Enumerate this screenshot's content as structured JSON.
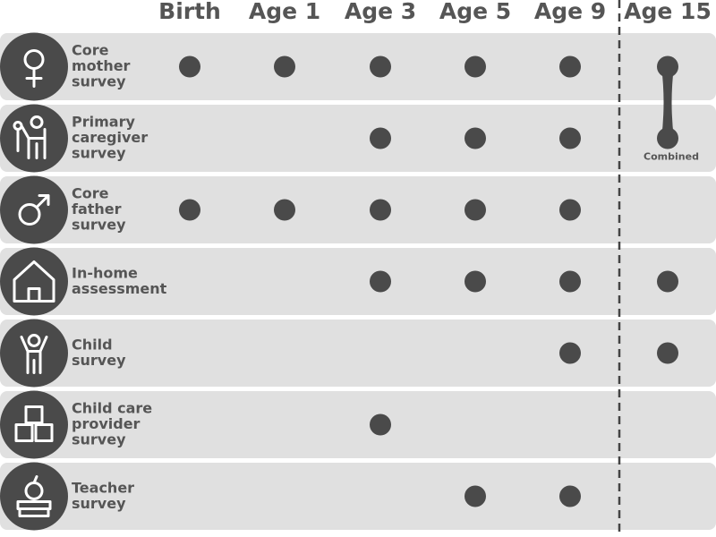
{
  "columns": [
    "Birth",
    "Age 1",
    "Age 3",
    "Age 5",
    "Age 9",
    "Age 15"
  ],
  "rows": [
    {
      "label": [
        "Core",
        "mother",
        "survey"
      ],
      "dots": [
        0,
        1,
        2,
        3,
        4,
        5
      ]
    },
    {
      "label": [
        "Primary",
        "caregiver",
        "survey"
      ],
      "dots": [
        2,
        3,
        4,
        5
      ]
    },
    {
      "label": [
        "Core",
        "father",
        "survey"
      ],
      "dots": [
        0,
        1,
        2,
        3,
        4
      ]
    },
    {
      "label": [
        "In-home",
        "assessment"
      ],
      "dots": [
        2,
        3,
        4,
        5
      ]
    },
    {
      "label": [
        "Child",
        "survey"
      ],
      "dots": [
        4,
        5
      ]
    },
    {
      "label": [
        "Child care",
        "provider",
        "survey"
      ],
      "dots": [
        2
      ]
    },
    {
      "label": [
        "Teacher",
        "survey"
      ],
      "dots": [
        3,
        4
      ]
    }
  ],
  "annotation": {
    "text": "Combined",
    "rows": [
      0,
      1
    ],
    "column": 5
  }
}
